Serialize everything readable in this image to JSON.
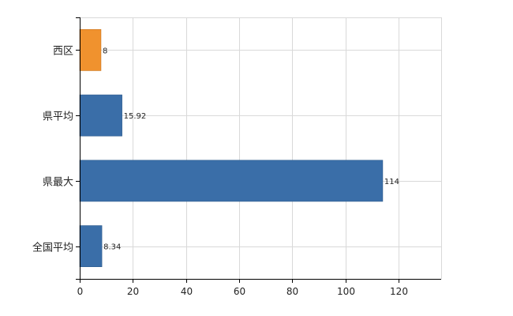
{
  "chart_data": {
    "type": "bar",
    "orientation": "horizontal",
    "categories": [
      "西区",
      "県平均",
      "県最大",
      "全国平均"
    ],
    "values": [
      8,
      15.92,
      114,
      8.34
    ],
    "value_labels": [
      "8",
      "15.92",
      "114",
      "8.34"
    ],
    "bar_colors": [
      "#f0922e",
      "#3a6ea8",
      "#3a6ea8",
      "#3a6ea8"
    ],
    "xlim": [
      0,
      136
    ],
    "xticks": [
      0,
      20,
      40,
      60,
      80,
      100,
      120
    ],
    "xtick_labels": [
      "0",
      "20",
      "40",
      "60",
      "80",
      "100",
      "120"
    ],
    "grid": true,
    "title": "",
    "xlabel": "",
    "ylabel": ""
  }
}
